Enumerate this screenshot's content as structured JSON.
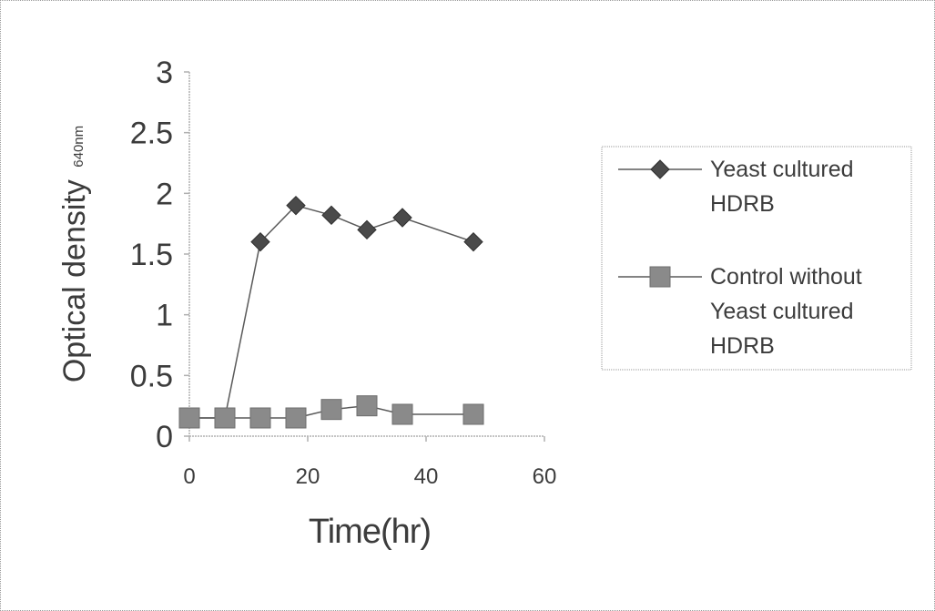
{
  "chart_data": {
    "type": "line",
    "xlabel": "Time(hr)",
    "ylabel_main": "Optical density",
    "ylabel_subscript": "640nm",
    "xlim": [
      0,
      60
    ],
    "ylim": [
      0,
      3
    ],
    "x_ticks": [
      0,
      20,
      40,
      60
    ],
    "y_ticks": [
      0,
      0.5,
      1,
      1.5,
      2,
      2.5,
      3
    ],
    "x_tick_labels": [
      "0",
      "20",
      "40",
      "60"
    ],
    "y_tick_labels": [
      "0",
      "0.5",
      "1",
      "1.5",
      "2",
      "2.5",
      "3"
    ],
    "grid": false,
    "legend_position": "right",
    "series": [
      {
        "name_lines": [
          "Yeast cultured",
          "HDRB"
        ],
        "marker": "diamond",
        "color": "#4a4a4a",
        "x": [
          0,
          6,
          12,
          18,
          24,
          30,
          36,
          48
        ],
        "y": [
          0.15,
          0.15,
          1.6,
          1.9,
          1.82,
          1.7,
          1.8,
          1.6
        ]
      },
      {
        "name_lines": [
          "Control without",
          "Yeast cultured",
          "HDRB"
        ],
        "marker": "square",
        "color": "#8a8a8a",
        "x": [
          0,
          6,
          12,
          18,
          24,
          30,
          36,
          48
        ],
        "y": [
          0.15,
          0.15,
          0.15,
          0.15,
          0.22,
          0.25,
          0.18,
          0.18
        ]
      }
    ]
  }
}
